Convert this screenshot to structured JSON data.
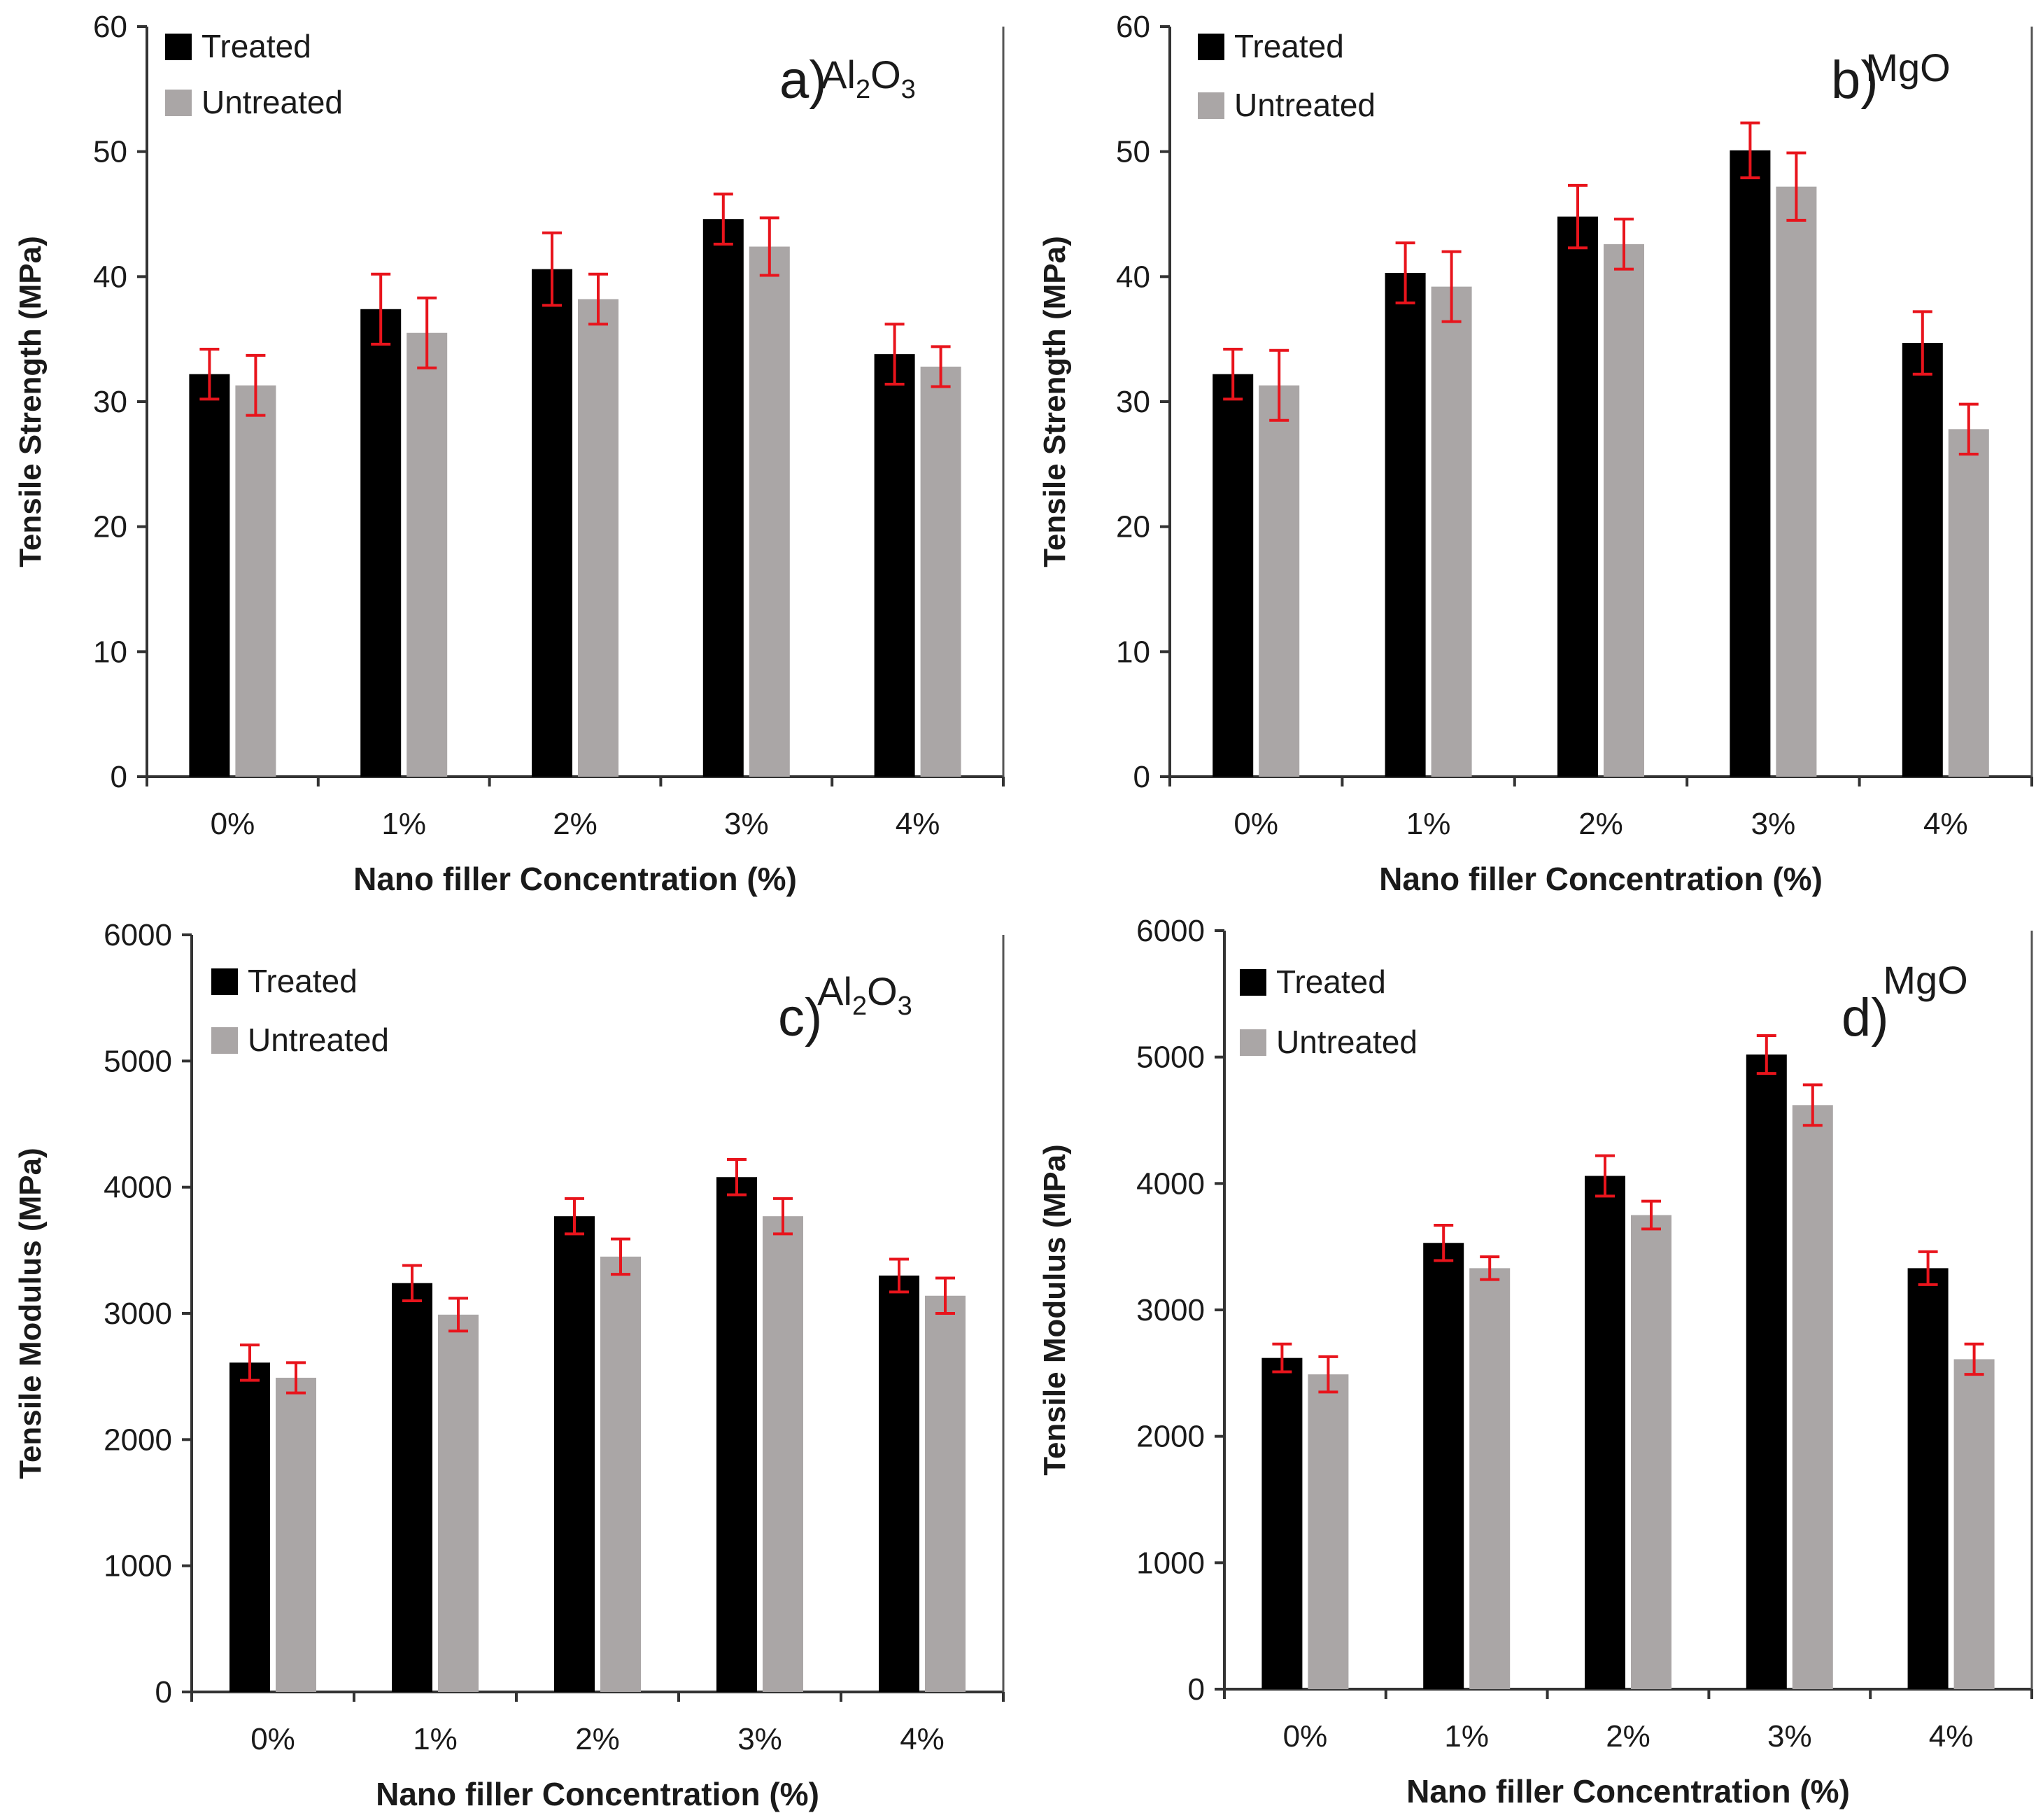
{
  "colors": {
    "treated": "#000000",
    "untreated": "#aaa6a6",
    "error_bar": "#e8141c",
    "axis": "#333333",
    "frame": "#555555",
    "text": "#1a1a1a"
  },
  "chart_data": [
    {
      "id": "a",
      "type": "bar",
      "panel_letter": "a)",
      "material": "Al2O3",
      "material_parts": [
        "Al",
        "2",
        "O",
        "3"
      ],
      "categories": [
        "0%",
        "1%",
        "2%",
        "3%",
        "4%"
      ],
      "xlabel": "Nano filler Concentration (%)",
      "ylabel": "Tensile Strength (MPa)",
      "ylim": [
        0,
        60
      ],
      "yticks": [
        0,
        10,
        20,
        30,
        40,
        50,
        60
      ],
      "legend_position": "top-left",
      "series": [
        {
          "name": "Treated",
          "values": [
            32.2,
            37.4,
            40.6,
            44.6,
            33.8
          ],
          "errors": [
            2.0,
            2.8,
            2.9,
            2.0,
            2.4
          ]
        },
        {
          "name": "Untreated",
          "values": [
            31.3,
            35.5,
            38.2,
            42.4,
            32.8
          ],
          "errors": [
            2.4,
            2.8,
            2.0,
            2.3,
            1.6
          ]
        }
      ]
    },
    {
      "id": "b",
      "type": "bar",
      "panel_letter": "b)",
      "material": "MgO",
      "material_parts": [
        "MgO"
      ],
      "categories": [
        "0%",
        "1%",
        "2%",
        "3%",
        "4%"
      ],
      "xlabel": "Nano filler Concentration (%)",
      "ylabel": "Tensile Strength (MPa)",
      "ylim": [
        0,
        60
      ],
      "yticks": [
        0,
        10,
        20,
        30,
        40,
        50,
        60
      ],
      "legend_position": "top-left",
      "series": [
        {
          "name": "Treated",
          "values": [
            32.2,
            40.3,
            44.8,
            50.1,
            34.7
          ],
          "errors": [
            2.0,
            2.4,
            2.5,
            2.2,
            2.5
          ]
        },
        {
          "name": "Untreated",
          "values": [
            31.3,
            39.2,
            42.6,
            47.2,
            27.8
          ],
          "errors": [
            2.8,
            2.8,
            2.0,
            2.7,
            2.0
          ]
        }
      ]
    },
    {
      "id": "c",
      "type": "bar",
      "panel_letter": "c)",
      "material": "Al2O3",
      "material_parts": [
        "Al",
        "2",
        "O",
        "3"
      ],
      "categories": [
        "0%",
        "1%",
        "2%",
        "3%",
        "4%"
      ],
      "xlabel": "Nano filler Concentration (%)",
      "ylabel": "Tensile Modulus (MPa)",
      "ylim": [
        0,
        6000
      ],
      "yticks": [
        0,
        1000,
        2000,
        3000,
        4000,
        5000,
        6000
      ],
      "legend_position": "top-left",
      "series": [
        {
          "name": "Treated",
          "values": [
            2610,
            3240,
            3770,
            4080,
            3300
          ],
          "errors": [
            140,
            140,
            140,
            140,
            130
          ]
        },
        {
          "name": "Untreated",
          "values": [
            2490,
            2990,
            3450,
            3770,
            3140
          ],
          "errors": [
            120,
            130,
            140,
            140,
            140
          ]
        }
      ]
    },
    {
      "id": "d",
      "type": "bar",
      "panel_letter": "d)",
      "material": "MgO",
      "material_parts": [
        "MgO"
      ],
      "categories": [
        "0%",
        "1%",
        "2%",
        "3%",
        "4%"
      ],
      "xlabel": "Nano filler Concentration (%)",
      "ylabel": "Tensile Modulus (MPa)",
      "ylim": [
        0,
        6000
      ],
      "yticks": [
        0,
        1000,
        2000,
        3000,
        4000,
        5000,
        6000
      ],
      "legend_position": "top-left",
      "series": [
        {
          "name": "Treated",
          "values": [
            2620,
            3530,
            4060,
            5020,
            3330
          ],
          "errors": [
            110,
            140,
            160,
            150,
            130
          ]
        },
        {
          "name": "Untreated",
          "values": [
            2490,
            3330,
            3750,
            4620,
            2610
          ],
          "errors": [
            140,
            90,
            110,
            160,
            120
          ]
        }
      ]
    }
  ]
}
